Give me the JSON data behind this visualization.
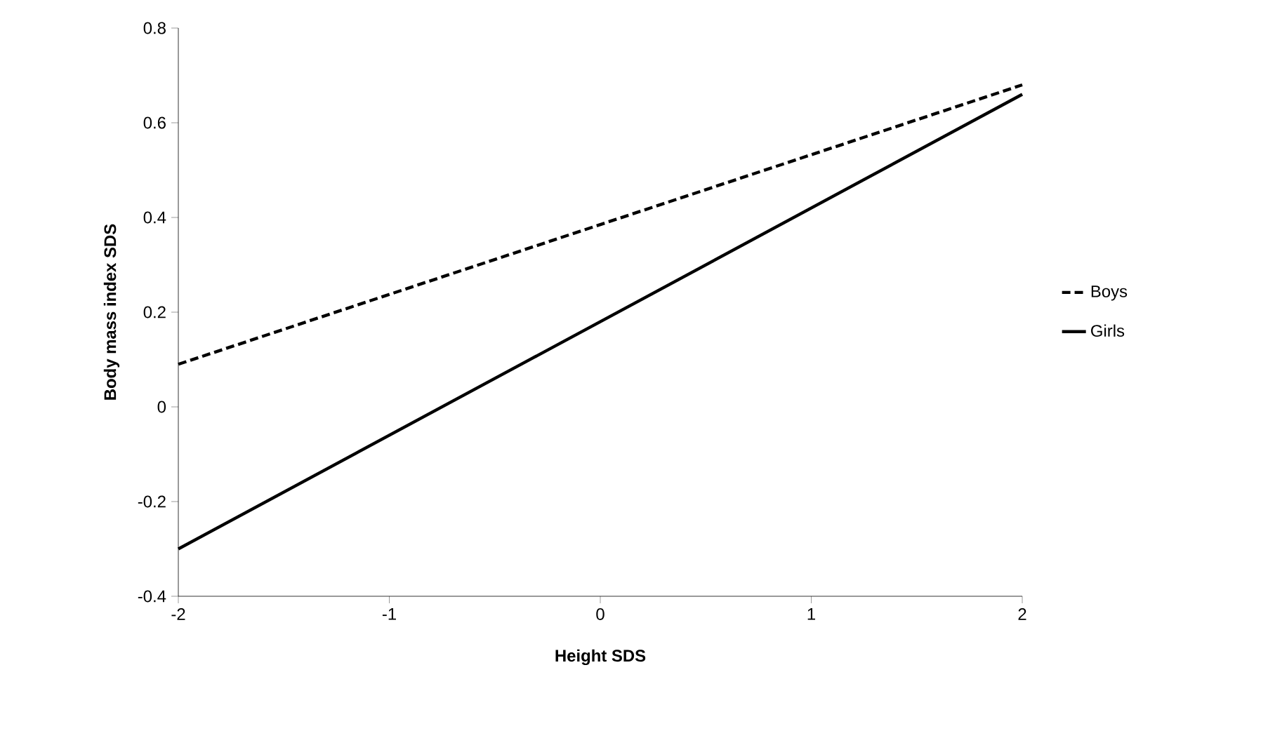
{
  "chart_data": {
    "type": "line",
    "xlabel": "Height SDS",
    "ylabel": "Body mass index SDS",
    "x": [
      -2,
      2
    ],
    "series": [
      {
        "name": "Boys",
        "color": "#000000",
        "line_style": "dashed",
        "values": [
          0.09,
          0.68
        ]
      },
      {
        "name": "Girls",
        "color": "#000000",
        "line_style": "solid",
        "values": [
          -0.3,
          0.66
        ]
      }
    ],
    "xlim": [
      -2,
      2
    ],
    "xticks": [
      -2,
      -1,
      0,
      1,
      2
    ],
    "ylim": [
      -0.4,
      0.8
    ],
    "yticks": [
      -0.4,
      -0.2,
      0,
      0.2,
      0.4,
      0.6,
      0.8
    ],
    "grid": false,
    "legend": "right",
    "marker": "none"
  }
}
